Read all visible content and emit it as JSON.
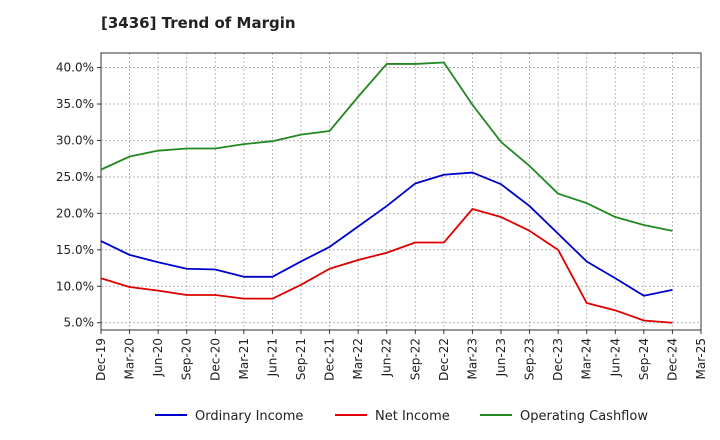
{
  "chart_data": {
    "type": "line",
    "title": "[3436]  Trend of Margin",
    "xlabel": "",
    "ylabel": "",
    "x": [
      "Dec-19",
      "Mar-20",
      "Jun-20",
      "Sep-20",
      "Dec-20",
      "Mar-21",
      "Jun-21",
      "Sep-21",
      "Dec-21",
      "Mar-22",
      "Jun-22",
      "Sep-22",
      "Dec-22",
      "Mar-23",
      "Jun-23",
      "Sep-23",
      "Dec-23",
      "Mar-24",
      "Jun-24",
      "Sep-24",
      "Dec-24",
      "Mar-25"
    ],
    "ylim": [
      4.0,
      42.0
    ],
    "yticks": [
      5,
      10,
      15,
      20,
      25,
      30,
      35,
      40
    ],
    "ytick_labels": [
      "5.0%",
      "10.0%",
      "15.0%",
      "20.0%",
      "25.0%",
      "30.0%",
      "35.0%",
      "40.0%"
    ],
    "grid": true,
    "legend_position": "bottom",
    "series": [
      {
        "name": "Ordinary Income",
        "color": "#0000cc",
        "values": [
          16.2,
          14.3,
          13.3,
          12.4,
          12.3,
          11.3,
          11.3,
          13.4,
          15.4,
          18.2,
          21.0,
          24.1,
          25.3,
          25.6,
          24.0,
          21.0,
          17.2,
          13.4,
          11.1,
          8.7,
          9.5,
          null
        ]
      },
      {
        "name": "Net Income",
        "color": "#dd0000",
        "values": [
          11.1,
          9.9,
          9.4,
          8.8,
          8.8,
          8.3,
          8.3,
          10.2,
          12.4,
          13.6,
          14.6,
          16.0,
          16.0,
          20.6,
          19.5,
          17.6,
          15.0,
          7.7,
          6.7,
          5.3,
          5.0,
          null
        ]
      },
      {
        "name": "Operating Cashflow",
        "color": "#228822",
        "values": [
          26.0,
          27.8,
          28.6,
          28.9,
          28.9,
          29.5,
          29.9,
          30.8,
          31.3,
          36.0,
          40.5,
          40.5,
          40.7,
          34.9,
          29.8,
          26.5,
          22.7,
          21.4,
          19.5,
          18.4,
          17.6,
          null
        ]
      }
    ]
  }
}
